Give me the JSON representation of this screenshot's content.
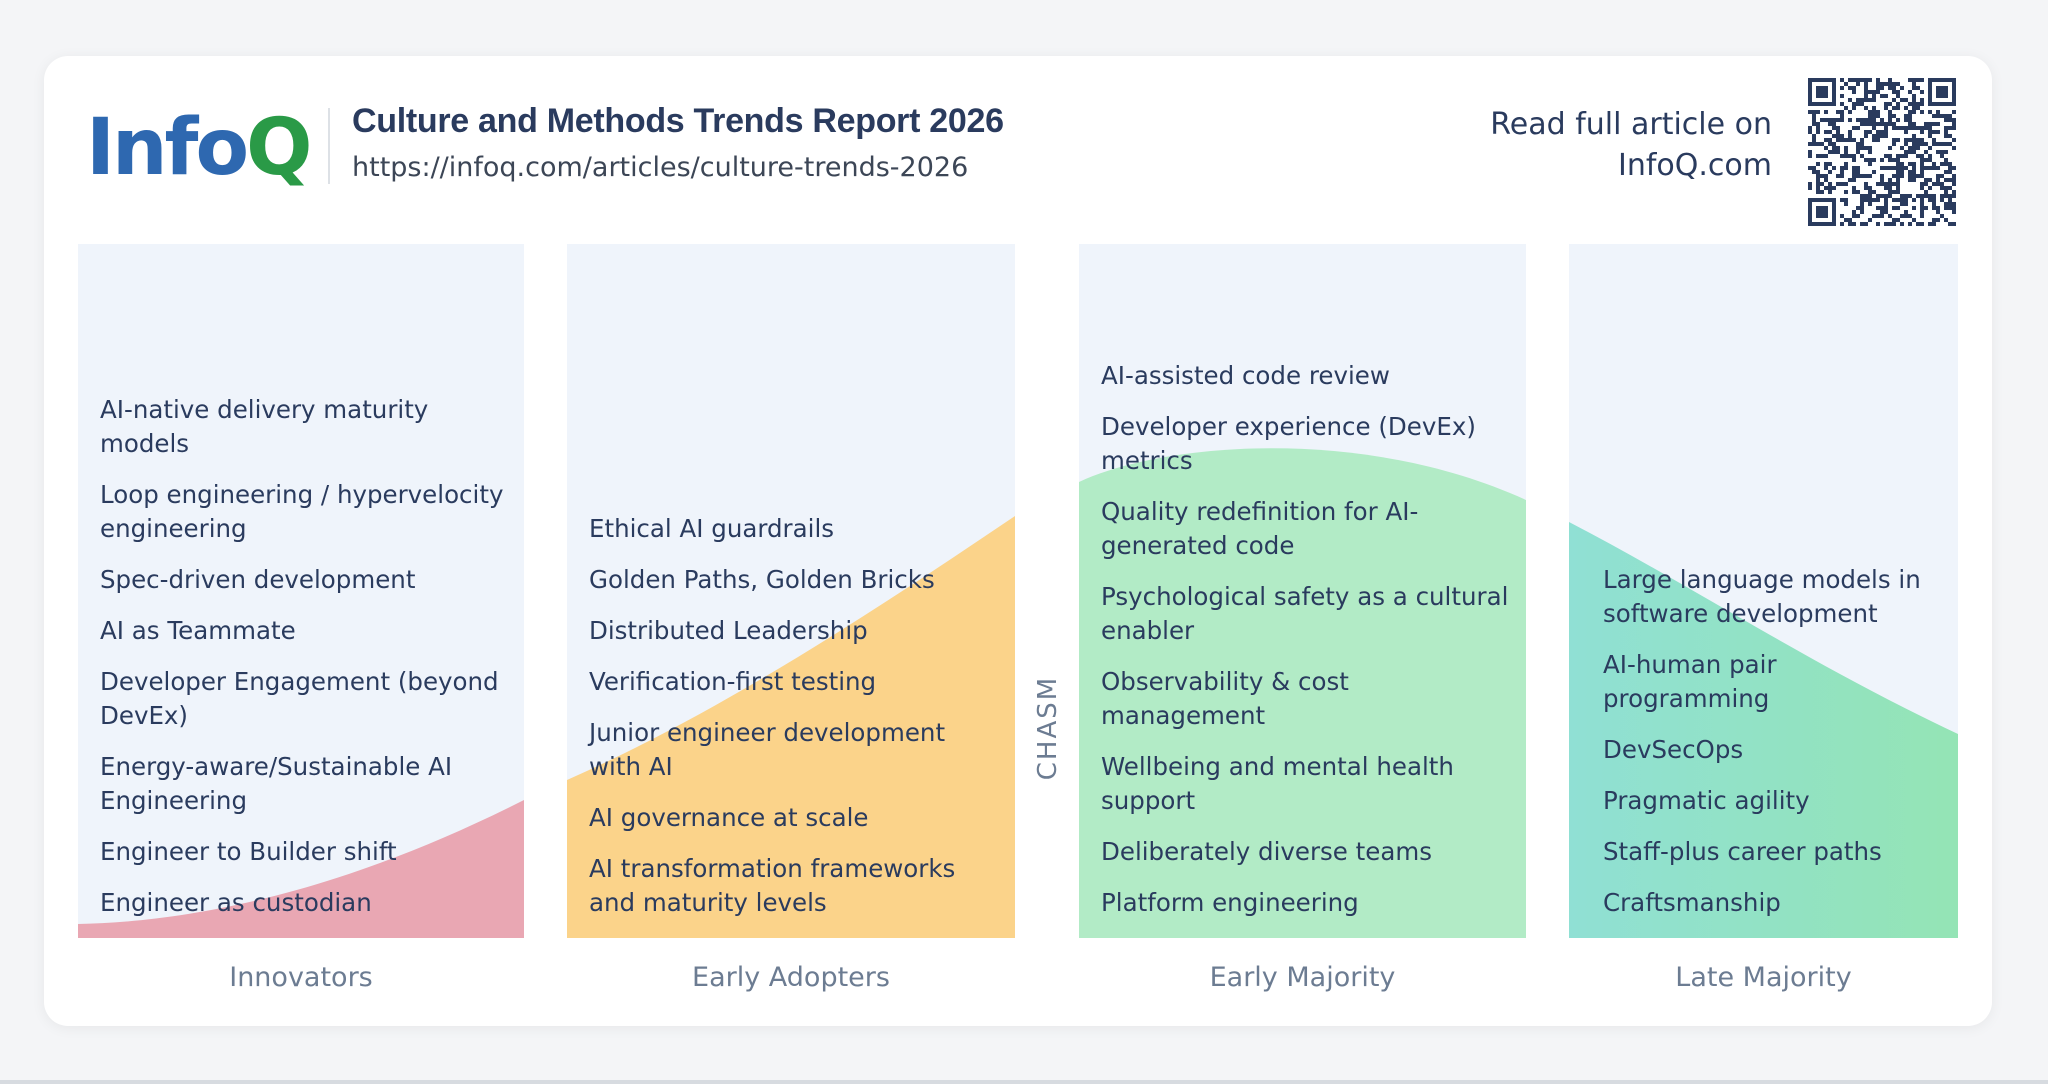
{
  "header": {
    "logo_part1": "Info",
    "logo_part2": "Q",
    "title": "Culture and Methods Trends Report 2026",
    "url": "https://infoq.com/articles/culture-trends-2026",
    "read_more_line1": "Read full article on",
    "read_more_line2": "InfoQ.com"
  },
  "chasm_label": "CHASM",
  "columns": [
    {
      "label": "Innovators",
      "color": "#e9a7b3",
      "items": [
        "AI-native delivery maturity models",
        "Loop engineering / hypervelocity engineering",
        "Spec-driven development",
        "AI as Teammate",
        "Developer Engagement (beyond DevEx)",
        "Energy-aware/Sustainable AI Engineering",
        "Engineer to Builder shift",
        "Engineer as custodian"
      ]
    },
    {
      "label": "Early Adopters",
      "color": "#fbd38a",
      "items": [
        "Ethical AI guardrails",
        "Golden Paths, Golden Bricks",
        "Distributed Leadership",
        "Verification-first testing",
        "Junior engineer development with AI",
        "AI governance at scale",
        "AI transformation frameworks and maturity levels"
      ]
    },
    {
      "label": "Early Majority",
      "color": "#b2ebc6",
      "items": [
        "AI-assisted code review",
        "Developer experience (DevEx) metrics",
        "Quality redefinition for AI-generated code",
        "Psychological safety as a cultural enabler",
        "Observability & cost management",
        "Wellbeing and mental health support",
        "Deliberately diverse teams",
        "Platform engineering"
      ]
    },
    {
      "label": "Late Majority",
      "color_start": "#90e0d4",
      "color_end": "#94e4b5",
      "items": [
        "Large language models in software development",
        "AI-human pair programming",
        "DevSecOps",
        "Pragmatic agility",
        "Staff-plus career paths",
        "Craftsmanship"
      ]
    }
  ]
}
